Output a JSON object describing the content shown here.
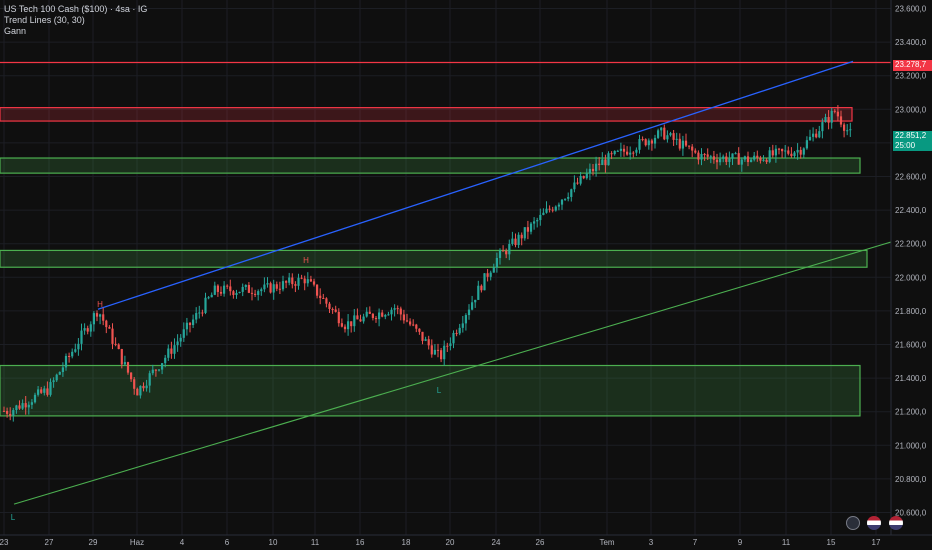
{
  "legend": {
    "symbol": "US Tech 100 Cash ($100) · 4sa · IG",
    "indicator1": "Trend Lines (30, 30)",
    "indicator2": "Gann"
  },
  "price_badges": {
    "resistance_label": "23.278,7",
    "last_price": "22.851,2",
    "countdown": "25:00"
  },
  "pivot_labels": [
    "H",
    "H",
    "L",
    "L"
  ],
  "icons": [
    "lightning-icon",
    "us-flag-icon",
    "us-flag-icon"
  ],
  "colors": {
    "background": "#0f0f0f",
    "up_candle": "#26a69a",
    "down_candle": "#ef5350",
    "support_zone": "#4caf50",
    "resistance_zone": "#f23645",
    "upper_trendline": "#2962ff",
    "lower_trendline": "#4caf50",
    "last_price_badge": "#089981"
  },
  "chart_data": {
    "type": "candlestick",
    "y_ticks": [
      "23.600,0",
      "23.400,0",
      "23.200,0",
      "23.000,0",
      "22.800,0",
      "22.600,0",
      "22.400,0",
      "22.200,0",
      "22.000,0",
      "21.800,0",
      "21.600,0",
      "21.400,0",
      "21.200,0",
      "21.000,0",
      "20.800,0",
      "20.600,0"
    ],
    "x_ticks": [
      "23",
      "27",
      "29",
      "Haz",
      "4",
      "6",
      "10",
      "11",
      "16",
      "18",
      "20",
      "24",
      "26",
      "Tem",
      "3",
      "7",
      "9",
      "11",
      "15",
      "17"
    ],
    "ylim": [
      20560,
      23650
    ],
    "series": [
      {
        "day": "23",
        "close": 21205
      },
      {
        "day": "27",
        "close": 21335
      },
      {
        "day": "29",
        "close": 21810
      },
      {
        "day": "Haz",
        "close": 21320
      },
      {
        "day": "4",
        "close": 21560
      },
      {
        "day": "6",
        "close": 21920
      },
      {
        "day": "10",
        "close": 21930
      },
      {
        "day": "11",
        "close": 21990
      },
      {
        "day": "16",
        "close": 21720
      },
      {
        "day": "18",
        "close": 21820
      },
      {
        "day": "20",
        "close": 21520
      },
      {
        "day": "24",
        "close": 22100
      },
      {
        "day": "26",
        "close": 22380
      },
      {
        "day": "Tem",
        "close": 22680
      },
      {
        "day": "3",
        "close": 22860
      },
      {
        "day": "7",
        "close": 22720
      },
      {
        "day": "9",
        "close": 22700
      },
      {
        "day": "11",
        "close": 22760
      },
      {
        "day": "15",
        "close": 22990
      },
      {
        "day": "15",
        "close": 22851
      }
    ],
    "zones": [
      {
        "kind": "resistance",
        "from": 22930,
        "to": 23010
      },
      {
        "kind": "support",
        "from": 22620,
        "to": 22710
      },
      {
        "kind": "support",
        "from": 22060,
        "to": 22160
      },
      {
        "kind": "support",
        "from": 21175,
        "to": 21475
      }
    ],
    "horizontal_level": 23278.7,
    "trendlines": [
      {
        "name": "upper",
        "from": {
          "x": "29",
          "y": 21810
        },
        "to": {
          "x": "15",
          "y": 23285
        }
      },
      {
        "name": "lower",
        "from": {
          "x": "23",
          "y": 20650
        },
        "to": {
          "x": "17",
          "y": 22210
        }
      }
    ],
    "grid": true
  }
}
